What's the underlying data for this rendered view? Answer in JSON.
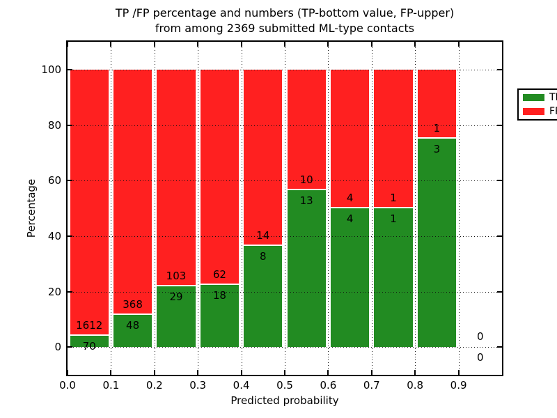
{
  "chart_data": {
    "type": "bar",
    "stacked": true,
    "normalized_to_percent": true,
    "title_line1": "TP /FP percentage and numbers (TP-bottom value, FP-upper)",
    "title_line2": "from among 2369 submitted ML-type contacts",
    "total_submitted_contacts": 2369,
    "xlabel": "Predicted probability",
    "ylabel": "Percentage",
    "legend_position": "upper right",
    "grid": "dotted",
    "xlim": [
      0.0,
      1.0
    ],
    "ylim": [
      -10,
      110
    ],
    "yticks": [
      0,
      20,
      40,
      60,
      80,
      100
    ],
    "xticks": [
      {
        "value": 0.0,
        "label": "0.0"
      },
      {
        "value": 0.1,
        "label": "0.1"
      },
      {
        "value": 0.2,
        "label": "0.2"
      },
      {
        "value": 0.3,
        "label": "0.3"
      },
      {
        "value": 0.4,
        "label": "0.4"
      },
      {
        "value": 0.5,
        "label": "0.5"
      },
      {
        "value": 0.6,
        "label": "0.6"
      },
      {
        "value": 0.7,
        "label": "0.7"
      },
      {
        "value": 0.8,
        "label": "0.8"
      },
      {
        "value": 0.9,
        "label": "0.9"
      }
    ],
    "legend": [
      {
        "label": "TP",
        "color": "#228b22"
      },
      {
        "label": "FP",
        "color": "#ff2020"
      }
    ],
    "bins": [
      {
        "x_start": 0.0,
        "x_end": 0.1,
        "tp": 70,
        "fp": 1612
      },
      {
        "x_start": 0.1,
        "x_end": 0.2,
        "tp": 48,
        "fp": 368
      },
      {
        "x_start": 0.2,
        "x_end": 0.3,
        "tp": 29,
        "fp": 103
      },
      {
        "x_start": 0.3,
        "x_end": 0.4,
        "tp": 18,
        "fp": 62
      },
      {
        "x_start": 0.4,
        "x_end": 0.5,
        "tp": 8,
        "fp": 14
      },
      {
        "x_start": 0.5,
        "x_end": 0.6,
        "tp": 13,
        "fp": 10
      },
      {
        "x_start": 0.6,
        "x_end": 0.7,
        "tp": 4,
        "fp": 4
      },
      {
        "x_start": 0.7,
        "x_end": 0.8,
        "tp": 1,
        "fp": 1
      },
      {
        "x_start": 0.8,
        "x_end": 0.9,
        "tp": 3,
        "fp": 1
      },
      {
        "x_start": 0.9,
        "x_end": 1.0,
        "tp": 0,
        "fp": 0
      }
    ]
  }
}
